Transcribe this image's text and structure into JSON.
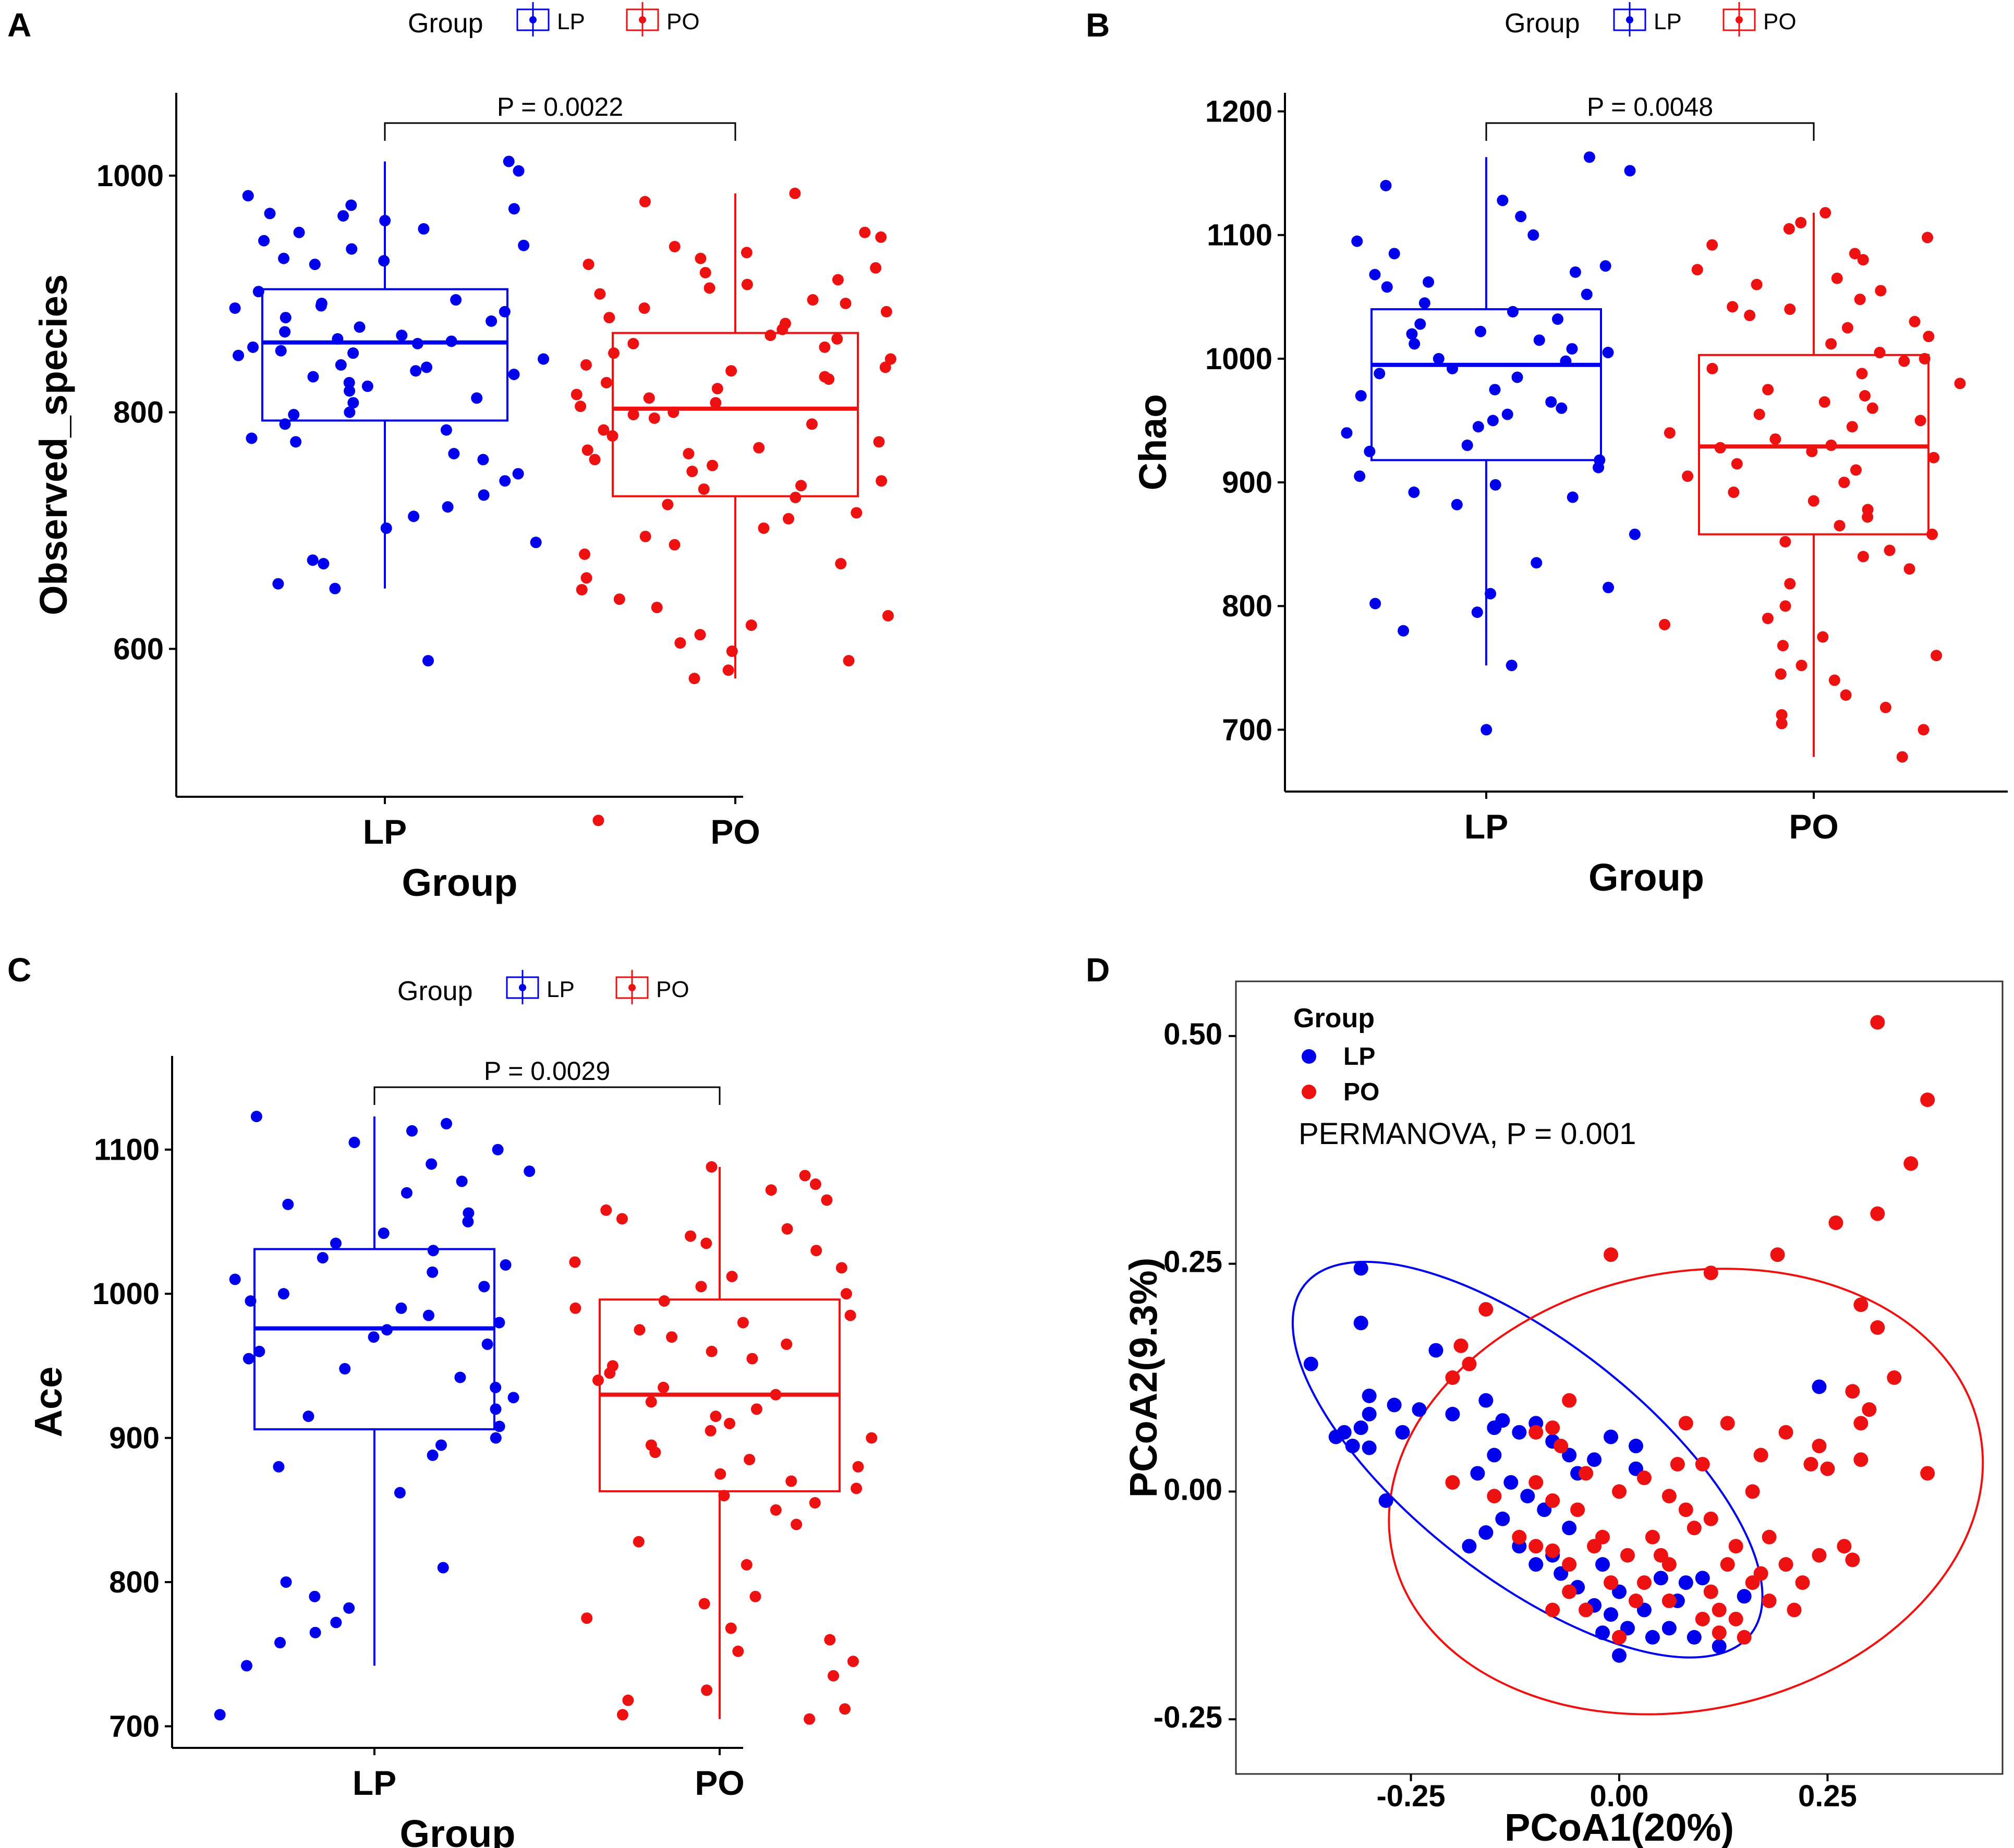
{
  "colors": {
    "LP": "#0000ee",
    "PO": "#ee1111"
  },
  "chart_data": [
    {
      "panel": "A",
      "type": "boxplot",
      "legend": {
        "title": "Group",
        "items": [
          "LP",
          "PO"
        ]
      },
      "xlabel": "Group",
      "ylabel": "Observed_species",
      "categories": [
        "LP",
        "PO"
      ],
      "ylim": [
        475,
        1070
      ],
      "yticks": [
        600,
        800,
        1000
      ],
      "p_label": "P =  0.0022",
      "boxes": [
        {
          "group": "LP",
          "q1": 793,
          "median": 859,
          "q3": 904,
          "whisker_low": 651,
          "whisker_high": 1012
        },
        {
          "group": "PO",
          "q1": 729,
          "median": 803,
          "q3": 867,
          "whisker_low": 575,
          "whisker_high": 985
        }
      ],
      "points": {
        "LP": [
          1012,
          1004,
          983,
          975,
          972,
          968,
          966,
          962,
          955,
          952,
          945,
          941,
          938,
          930,
          928,
          925,
          902,
          895,
          892,
          890,
          888,
          885,
          880,
          877,
          872,
          868,
          865,
          862,
          860,
          858,
          855,
          852,
          850,
          848,
          845,
          840,
          838,
          835,
          832,
          830,
          825,
          822,
          818,
          812,
          808,
          800,
          798,
          790,
          785,
          778,
          775,
          765,
          760,
          748,
          742,
          730,
          720,
          712,
          702,
          690,
          675,
          672,
          655,
          651,
          590
        ],
        "PO": [
          985,
          978,
          952,
          948,
          940,
          935,
          930,
          925,
          922,
          918,
          912,
          908,
          905,
          900,
          895,
          892,
          888,
          885,
          880,
          875,
          870,
          865,
          862,
          858,
          855,
          850,
          845,
          840,
          838,
          835,
          830,
          828,
          825,
          820,
          815,
          812,
          808,
          805,
          800,
          798,
          795,
          790,
          785,
          780,
          775,
          770,
          768,
          765,
          760,
          755,
          750,
          742,
          738,
          735,
          728,
          722,
          715,
          710,
          702,
          695,
          688,
          680,
          672,
          660,
          650,
          642,
          635,
          628,
          620,
          612,
          605,
          598,
          590,
          582,
          575,
          455
        ]
      }
    },
    {
      "panel": "B",
      "type": "boxplot",
      "legend": {
        "title": "Group",
        "items": [
          "LP",
          "PO"
        ]
      },
      "xlabel": "Group",
      "ylabel": "Chao",
      "categories": [
        "LP",
        "PO"
      ],
      "ylim": [
        650,
        1215
      ],
      "yticks": [
        700,
        800,
        900,
        1000,
        1100,
        1200
      ],
      "p_label": "P =  0.0048",
      "boxes": [
        {
          "group": "LP",
          "q1": 918,
          "median": 995,
          "q3": 1040,
          "whisker_low": 752,
          "whisker_high": 1163
        },
        {
          "group": "PO",
          "q1": 858,
          "median": 929,
          "q3": 1003,
          "whisker_low": 678,
          "whisker_high": 1118
        }
      ],
      "points": {
        "LP": [
          1163,
          1152,
          1140,
          1128,
          1115,
          1100,
          1095,
          1085,
          1075,
          1070,
          1068,
          1062,
          1058,
          1052,
          1045,
          1038,
          1032,
          1028,
          1022,
          1020,
          1015,
          1012,
          1008,
          1005,
          1000,
          998,
          992,
          988,
          985,
          975,
          970,
          965,
          960,
          955,
          950,
          945,
          940,
          930,
          925,
          918,
          912,
          905,
          898,
          892,
          888,
          882,
          858,
          835,
          815,
          810,
          802,
          795,
          780,
          752,
          700
        ],
        "PO": [
          1118,
          1110,
          1105,
          1098,
          1092,
          1085,
          1080,
          1072,
          1065,
          1060,
          1055,
          1048,
          1042,
          1040,
          1035,
          1030,
          1025,
          1018,
          1012,
          1005,
          1000,
          998,
          992,
          988,
          980,
          975,
          970,
          965,
          960,
          955,
          950,
          945,
          940,
          935,
          930,
          928,
          925,
          920,
          915,
          910,
          905,
          900,
          892,
          885,
          878,
          872,
          865,
          858,
          852,
          845,
          840,
          830,
          818,
          800,
          790,
          785,
          775,
          768,
          760,
          752,
          745,
          740,
          728,
          718,
          712,
          705,
          700,
          678
        ]
      }
    },
    {
      "panel": "C",
      "type": "boxplot",
      "legend": {
        "title": "Group",
        "items": [
          "LP",
          "PO"
        ]
      },
      "xlabel": "Group",
      "ylabel": "Ace",
      "categories": [
        "LP",
        "PO"
      ],
      "ylim": [
        685,
        1165
      ],
      "yticks": [
        700,
        800,
        900,
        1000,
        1100
      ],
      "p_label": "P = 0.0029",
      "boxes": [
        {
          "group": "LP",
          "q1": 906,
          "median": 976,
          "q3": 1031,
          "whisker_low": 742,
          "whisker_high": 1123
        },
        {
          "group": "PO",
          "q1": 863,
          "median": 930,
          "q3": 996,
          "whisker_low": 705,
          "whisker_high": 1088
        }
      ],
      "points": {
        "LP": [
          1123,
          1118,
          1113,
          1105,
          1100,
          1090,
          1085,
          1078,
          1070,
          1062,
          1056,
          1050,
          1042,
          1035,
          1030,
          1025,
          1020,
          1015,
          1010,
          1005,
          1000,
          995,
          990,
          985,
          980,
          975,
          970,
          965,
          960,
          955,
          948,
          942,
          935,
          928,
          920,
          915,
          908,
          900,
          895,
          888,
          880,
          862,
          810,
          800,
          790,
          782,
          772,
          765,
          758,
          742,
          708
        ],
        "PO": [
          1088,
          1082,
          1076,
          1072,
          1065,
          1058,
          1052,
          1045,
          1040,
          1035,
          1030,
          1022,
          1018,
          1012,
          1005,
          1000,
          995,
          990,
          985,
          980,
          975,
          970,
          965,
          960,
          955,
          950,
          945,
          940,
          935,
          930,
          925,
          920,
          915,
          910,
          905,
          900,
          895,
          890,
          885,
          880,
          875,
          870,
          865,
          860,
          855,
          850,
          840,
          828,
          812,
          790,
          785,
          775,
          768,
          760,
          752,
          745,
          735,
          725,
          718,
          712,
          708,
          705
        ]
      }
    },
    {
      "panel": "D",
      "type": "scatter",
      "legend": {
        "title": "Group",
        "items": [
          "LP",
          "PO"
        ]
      },
      "annotation": "PERMANOVA, P = 0.001",
      "xlabel": "PCoA1(20%)",
      "ylabel": "PCoA2(9.3%)",
      "xlim": [
        -0.46,
        0.46
      ],
      "ylim": [
        -0.31,
        0.56
      ],
      "xticks": [
        -0.25,
        0.0,
        0.25
      ],
      "yticks": [
        -0.25,
        0.0,
        0.25,
        0.5
      ],
      "tick_labels_x": [
        "-0.25",
        "0.00",
        "0.25"
      ],
      "tick_labels_y": [
        "-0.25",
        "0.00",
        "0.25",
        "0.50"
      ],
      "ellipses": [
        {
          "group": "LP",
          "cx": -0.11,
          "cy": 0.035,
          "rx": 0.34,
          "ry": 0.13,
          "angle_deg": -38
        },
        {
          "group": "PO",
          "cx": 0.08,
          "cy": 0.0,
          "rx": 0.36,
          "ry": 0.24,
          "angle_deg": 12
        }
      ],
      "points": {
        "LP": [
          [
            -0.31,
            0.245
          ],
          [
            -0.31,
            0.185
          ],
          [
            -0.37,
            0.14
          ],
          [
            -0.22,
            0.155
          ],
          [
            -0.27,
            0.095
          ],
          [
            -0.3,
            0.085
          ],
          [
            -0.31,
            0.07
          ],
          [
            -0.33,
            0.065
          ],
          [
            -0.32,
            0.05
          ],
          [
            -0.3,
            0.048
          ],
          [
            -0.24,
            0.09
          ],
          [
            -0.2,
            0.085
          ],
          [
            -0.16,
            0.1
          ],
          [
            -0.14,
            0.078
          ],
          [
            -0.12,
            0.065
          ],
          [
            -0.1,
            0.075
          ],
          [
            -0.08,
            0.055
          ],
          [
            -0.06,
            0.04
          ],
          [
            -0.03,
            0.035
          ],
          [
            -0.01,
            0.06
          ],
          [
            0.02,
            0.025
          ],
          [
            -0.15,
            0.04
          ],
          [
            -0.17,
            0.02
          ],
          [
            -0.13,
            0.01
          ],
          [
            -0.11,
            -0.005
          ],
          [
            -0.09,
            -0.02
          ],
          [
            -0.14,
            -0.03
          ],
          [
            -0.16,
            -0.045
          ],
          [
            -0.12,
            -0.06
          ],
          [
            -0.1,
            -0.08
          ],
          [
            -0.08,
            -0.07
          ],
          [
            -0.07,
            -0.09
          ],
          [
            -0.05,
            -0.105
          ],
          [
            -0.03,
            -0.125
          ],
          [
            -0.01,
            -0.135
          ],
          [
            0.0,
            -0.11
          ],
          [
            0.01,
            -0.15
          ],
          [
            0.03,
            -0.13
          ],
          [
            0.04,
            -0.16
          ],
          [
            -0.02,
            -0.155
          ],
          [
            0.0,
            -0.18
          ],
          [
            0.05,
            -0.095
          ],
          [
            0.07,
            -0.12
          ],
          [
            0.08,
            -0.1
          ],
          [
            0.09,
            -0.16
          ],
          [
            0.1,
            -0.095
          ],
          [
            0.12,
            -0.17
          ],
          [
            0.15,
            -0.115
          ],
          [
            0.24,
            0.115
          ],
          [
            -0.3,
            0.105
          ],
          [
            -0.26,
            0.065
          ],
          [
            -0.18,
            -0.06
          ],
          [
            -0.06,
            -0.04
          ],
          [
            -0.02,
            -0.08
          ],
          [
            0.02,
            0.05
          ],
          [
            -0.34,
            0.06
          ],
          [
            -0.28,
            -0.01
          ],
          [
            0.06,
            -0.15
          ],
          [
            -0.15,
            0.07
          ],
          [
            -0.05,
            0.02
          ]
        ],
        "PO": [
          [
            0.31,
            0.515
          ],
          [
            0.37,
            0.43
          ],
          [
            0.35,
            0.36
          ],
          [
            0.31,
            0.305
          ],
          [
            0.26,
            0.295
          ],
          [
            0.19,
            0.26
          ],
          [
            -0.01,
            0.26
          ],
          [
            0.11,
            0.24
          ],
          [
            0.29,
            0.205
          ],
          [
            0.31,
            0.18
          ],
          [
            -0.16,
            0.2
          ],
          [
            -0.19,
            0.16
          ],
          [
            -0.18,
            0.14
          ],
          [
            -0.2,
            0.125
          ],
          [
            0.33,
            0.125
          ],
          [
            0.28,
            0.11
          ],
          [
            0.29,
            0.075
          ],
          [
            0.3,
            0.09
          ],
          [
            0.37,
            0.02
          ],
          [
            0.29,
            0.035
          ],
          [
            -0.06,
            0.1
          ],
          [
            -0.08,
            0.07
          ],
          [
            -0.1,
            0.065
          ],
          [
            -0.07,
            0.05
          ],
          [
            0.08,
            0.075
          ],
          [
            0.13,
            0.075
          ],
          [
            0.17,
            0.04
          ],
          [
            0.2,
            0.065
          ],
          [
            0.24,
            0.05
          ],
          [
            0.25,
            0.025
          ],
          [
            0.23,
            0.03
          ],
          [
            0.1,
            0.03
          ],
          [
            0.07,
            0.03
          ],
          [
            0.16,
            0.0
          ],
          [
            -0.2,
            0.01
          ],
          [
            -0.15,
            -0.005
          ],
          [
            -0.1,
            0.01
          ],
          [
            -0.08,
            -0.01
          ],
          [
            -0.05,
            -0.02
          ],
          [
            -0.04,
            0.02
          ],
          [
            0.0,
            0.0
          ],
          [
            0.03,
            0.015
          ],
          [
            0.06,
            -0.005
          ],
          [
            0.08,
            -0.02
          ],
          [
            0.11,
            -0.03
          ],
          [
            0.14,
            -0.06
          ],
          [
            0.18,
            -0.05
          ],
          [
            0.2,
            -0.08
          ],
          [
            0.22,
            -0.1
          ],
          [
            0.24,
            -0.07
          ],
          [
            0.27,
            -0.06
          ],
          [
            0.28,
            -0.075
          ],
          [
            -0.12,
            -0.05
          ],
          [
            -0.1,
            -0.06
          ],
          [
            -0.08,
            -0.065
          ],
          [
            -0.06,
            -0.08
          ],
          [
            -0.03,
            -0.06
          ],
          [
            0.01,
            -0.07
          ],
          [
            0.04,
            -0.05
          ],
          [
            0.06,
            -0.08
          ],
          [
            0.09,
            -0.04
          ],
          [
            0.11,
            -0.11
          ],
          [
            0.12,
            -0.13
          ],
          [
            0.14,
            -0.14
          ],
          [
            0.16,
            -0.1
          ],
          [
            0.18,
            -0.12
          ],
          [
            0.06,
            -0.12
          ],
          [
            0.03,
            -0.1
          ],
          [
            -0.01,
            -0.1
          ],
          [
            -0.04,
            -0.13
          ],
          [
            -0.06,
            -0.11
          ],
          [
            -0.08,
            -0.13
          ],
          [
            0.1,
            -0.14
          ],
          [
            0.12,
            -0.155
          ],
          [
            0.15,
            -0.16
          ],
          [
            0.0,
            -0.16
          ],
          [
            0.02,
            -0.12
          ],
          [
            0.05,
            -0.07
          ],
          [
            -0.02,
            -0.05
          ],
          [
            0.13,
            -0.08
          ],
          [
            0.17,
            -0.09
          ],
          [
            0.21,
            -0.13
          ]
        ]
      }
    }
  ]
}
